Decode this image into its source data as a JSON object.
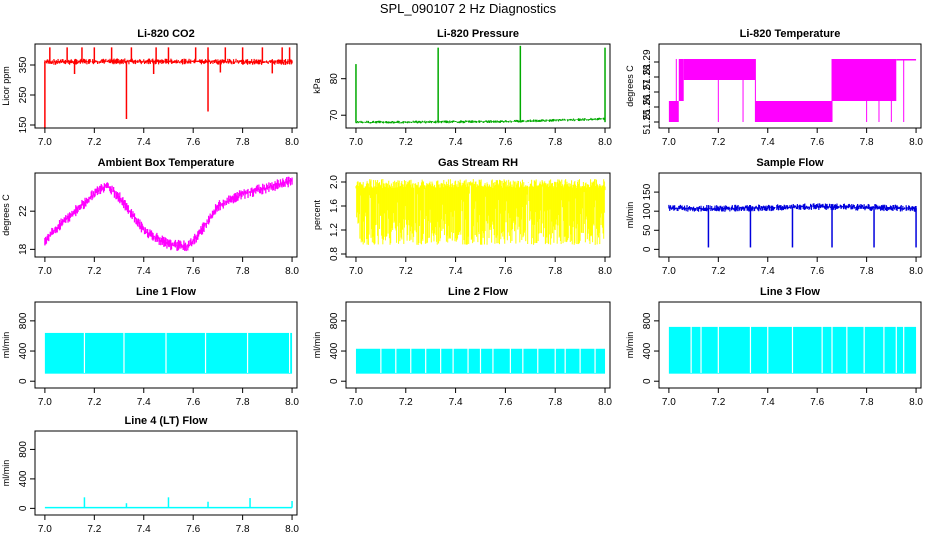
{
  "main_title": "SPL_090107  2 Hz Diagnostics",
  "chart_data": [
    {
      "type": "line",
      "title": "Li-820 CO2",
      "ylabel": "Licor ppm",
      "color": "#ff0000",
      "xlim": [
        6.96,
        8.02
      ],
      "ylim": [
        140,
        420
      ],
      "xticks": [
        "7.0",
        "7.2",
        "7.4",
        "7.6",
        "7.8",
        "8.0"
      ],
      "yticks": [
        150,
        250,
        350
      ],
      "ytick_labels": [
        "150",
        "250",
        "350"
      ],
      "series": [
        {
          "x": [
            7.0,
            7.33,
            7.66,
            8.0
          ],
          "y": [
            360,
            362,
            361,
            360
          ]
        }
      ],
      "spikes_up": [
        7.02,
        7.09,
        7.15,
        7.2,
        7.27,
        7.35,
        7.45,
        7.5,
        7.61,
        7.66,
        7.73,
        7.8,
        7.88,
        7.96,
        7.99
      ],
      "spikes_down": [
        [
          7.0,
          140
        ],
        [
          7.33,
          170
        ],
        [
          7.66,
          195
        ],
        [
          7.12,
          320
        ],
        [
          7.44,
          320
        ],
        [
          7.71,
          325
        ],
        [
          7.92,
          322
        ]
      ],
      "band": [
        350,
        370
      ]
    },
    {
      "type": "line",
      "title": "Li-820 Pressure",
      "ylabel": "kPa",
      "color": "#00aa00",
      "xlim": [
        6.96,
        8.02
      ],
      "ylim": [
        66.5,
        89.5
      ],
      "xticks": [
        "7.0",
        "7.2",
        "7.4",
        "7.6",
        "7.8",
        "8.0"
      ],
      "yticks": [
        70,
        80
      ],
      "ytick_labels": [
        "70",
        "80"
      ],
      "series": [
        {
          "x": [
            7.0,
            7.2,
            7.4,
            7.6,
            7.8,
            8.0
          ],
          "y": [
            68.1,
            68.1,
            68.2,
            68.3,
            68.6,
            69.0
          ]
        }
      ],
      "spikes_up": [
        [
          7.0,
          84
        ],
        [
          7.33,
          88.5
        ],
        [
          7.66,
          89
        ],
        [
          8.0,
          88.5
        ]
      ],
      "band": [
        67.8,
        68.6
      ]
    },
    {
      "type": "line",
      "title": "Li-820 Temperature",
      "ylabel": "degrees C",
      "color": "#ff00ff",
      "xlim": [
        6.96,
        8.02
      ],
      "ylim": [
        51.246,
        51.302
      ],
      "xticks": [
        "7.0",
        "7.2",
        "7.4",
        "7.6",
        "7.8",
        "8.0"
      ],
      "yticks": [
        51.25,
        51.26,
        51.27,
        51.28,
        51.29
      ],
      "ytick_labels": [
        "51.25",
        "51.26",
        "51.27",
        "51.28",
        "51.29"
      ],
      "levels": [
        {
          "x0": 7.0,
          "x1": 7.04,
          "lo": 51.25,
          "hi": 51.264
        },
        {
          "x0": 7.04,
          "x1": 7.06,
          "lo": 51.264,
          "hi": 51.292
        },
        {
          "x0": 7.06,
          "x1": 7.3,
          "lo": 51.278,
          "hi": 51.292
        },
        {
          "x0": 7.3,
          "x1": 7.35,
          "lo": 51.278,
          "hi": 51.292
        },
        {
          "x0": 7.35,
          "x1": 7.66,
          "lo": 51.25,
          "hi": 51.264
        },
        {
          "x0": 7.66,
          "x1": 7.92,
          "lo": 51.264,
          "hi": 51.292
        },
        {
          "x0": 7.92,
          "x1": 8.0,
          "lo": 51.292,
          "hi": 51.292
        }
      ]
    },
    {
      "type": "line",
      "title": "Ambient Box Temperature",
      "ylabel": "degrees C",
      "color": "#ff00ff",
      "xlim": [
        6.96,
        8.02
      ],
      "ylim": [
        17.2,
        26.0
      ],
      "xticks": [
        "7.0",
        "7.2",
        "7.4",
        "7.6",
        "7.8",
        "8.0"
      ],
      "yticks": [
        18,
        22
      ],
      "ytick_labels": [
        "18",
        "22"
      ],
      "series": [
        {
          "x": [
            7.0,
            7.1,
            7.2,
            7.25,
            7.3,
            7.4,
            7.5,
            7.58,
            7.62,
            7.7,
            7.8,
            7.9,
            8.0
          ],
          "y": [
            19.0,
            21.5,
            23.8,
            24.8,
            23.5,
            20.0,
            18.5,
            18.3,
            19.5,
            22.5,
            23.8,
            24.5,
            25.2
          ]
        }
      ],
      "band": [
        -0.6,
        0.6
      ]
    },
    {
      "type": "line",
      "title": "Gas Stream RH",
      "ylabel": "percent",
      "color": "#ffff00",
      "xlim": [
        6.96,
        8.02
      ],
      "ylim": [
        0.75,
        2.15
      ],
      "xticks": [
        "7.0",
        "7.2",
        "7.4",
        "7.6",
        "7.8",
        "8.0"
      ],
      "yticks": [
        0.8,
        1.2,
        1.6,
        2.0
      ],
      "ytick_labels": [
        "0.8",
        "1.2",
        "1.6",
        "2.0"
      ],
      "noise": [
        0.95,
        2.05
      ]
    },
    {
      "type": "line",
      "title": "Sample Flow",
      "ylabel": "ml/min",
      "color": "#0000dd",
      "xlim": [
        6.96,
        8.02
      ],
      "ylim": [
        -20,
        200
      ],
      "xticks": [
        "7.0",
        "7.2",
        "7.4",
        "7.6",
        "7.8",
        "8.0"
      ],
      "yticks": [
        0,
        50,
        100,
        150
      ],
      "ytick_labels": [
        "0",
        "50",
        "100",
        "150"
      ],
      "series": [
        {
          "x": [
            7.0,
            7.2,
            7.4,
            7.6,
            7.8,
            8.0
          ],
          "y": [
            108,
            107,
            109,
            112,
            110,
            107
          ]
        }
      ],
      "spikes_down": [
        [
          7.16,
          5
        ],
        [
          7.33,
          5
        ],
        [
          7.5,
          5
        ],
        [
          7.66,
          5
        ],
        [
          7.83,
          5
        ],
        [
          8.0,
          5
        ]
      ],
      "band": [
        100,
        118
      ]
    },
    {
      "type": "area",
      "title": "Line 1 Flow",
      "ylabel": "ml/min",
      "color": "#00ffff",
      "xlim": [
        6.96,
        8.02
      ],
      "ylim": [
        -90,
        1050
      ],
      "xticks": [
        "7.0",
        "7.2",
        "7.4",
        "7.6",
        "7.8",
        "8.0"
      ],
      "yticks": [
        0,
        400,
        800
      ],
      "ytick_labels": [
        "0",
        "400",
        "800"
      ],
      "fill_top": 640,
      "fill_bottom": 100,
      "gaps": [
        7.16,
        7.32,
        7.49,
        7.65,
        7.82,
        7.99
      ]
    },
    {
      "type": "area",
      "title": "Line 2 Flow",
      "ylabel": "ml/min",
      "color": "#00ffff",
      "xlim": [
        6.96,
        8.02
      ],
      "ylim": [
        -90,
        1050
      ],
      "xticks": [
        "7.0",
        "7.2",
        "7.4",
        "7.6",
        "7.8",
        "8.0"
      ],
      "yticks": [
        0,
        400,
        800
      ],
      "ytick_labels": [
        "0",
        "400",
        "800"
      ],
      "fill_top": 430,
      "fill_bottom": 100,
      "gaps": [
        7.1,
        7.16,
        7.22,
        7.28,
        7.34,
        7.39,
        7.45,
        7.5,
        7.55,
        7.62,
        7.67,
        7.73,
        7.8,
        7.84,
        7.9,
        7.96
      ]
    },
    {
      "type": "area",
      "title": "Line 3 Flow",
      "ylabel": "ml/min",
      "color": "#00ffff",
      "xlim": [
        6.96,
        8.02
      ],
      "ylim": [
        -90,
        1050
      ],
      "xticks": [
        "7.0",
        "7.2",
        "7.4",
        "7.6",
        "7.8",
        "8.0"
      ],
      "yticks": [
        0,
        400,
        800
      ],
      "ytick_labels": [
        "0",
        "400",
        "800"
      ],
      "fill_top": 720,
      "fill_bottom": 100,
      "gaps": [
        7.09,
        7.13,
        7.2,
        7.33,
        7.4,
        7.5,
        7.62,
        7.66,
        7.72,
        7.79,
        7.87,
        7.92,
        7.95
      ]
    },
    {
      "type": "line",
      "title": "Line 4 (LT) Flow",
      "ylabel": "ml/min",
      "color": "#00ffff",
      "xlim": [
        6.96,
        8.02
      ],
      "ylim": [
        -90,
        1050
      ],
      "xticks": [
        "7.0",
        "7.2",
        "7.4",
        "7.6",
        "7.8",
        "8.0"
      ],
      "yticks": [
        0,
        400,
        800
      ],
      "ytick_labels": [
        "0",
        "400",
        "800"
      ],
      "series": [
        {
          "x": [
            7.0,
            8.0
          ],
          "y": [
            10,
            10
          ]
        }
      ],
      "spikes_up": [
        [
          7.16,
          150
        ],
        [
          7.33,
          70
        ],
        [
          7.5,
          150
        ],
        [
          7.66,
          90
        ],
        [
          7.83,
          140
        ],
        [
          8.0,
          100
        ]
      ]
    }
  ]
}
